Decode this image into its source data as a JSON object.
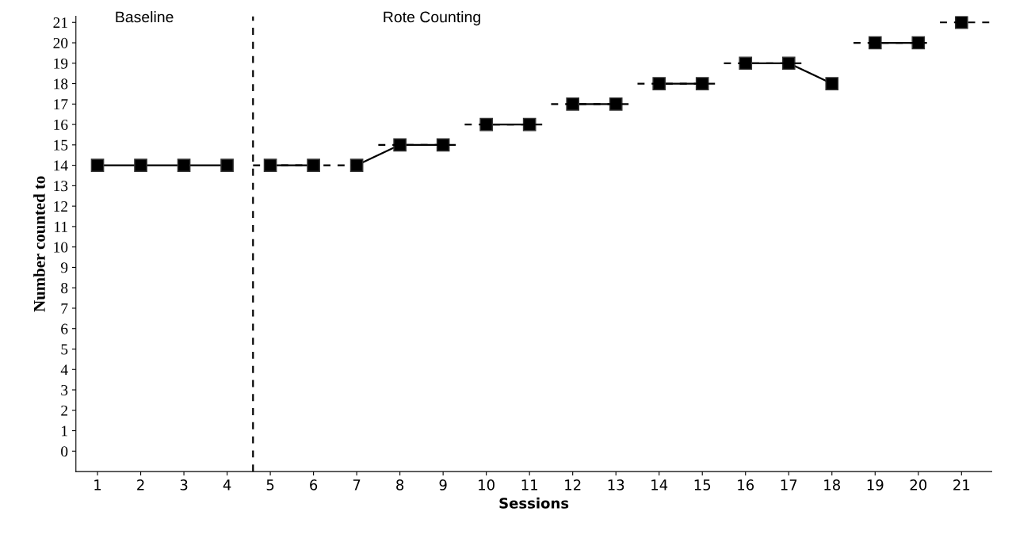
{
  "chart_data": {
    "type": "line",
    "xlabel": "Sessions",
    "ylabel": "Number counted to",
    "xlim": [
      0.5,
      21.7
    ],
    "xticks": [
      1,
      2,
      3,
      4,
      5,
      6,
      7,
      8,
      9,
      10,
      11,
      12,
      13,
      14,
      15,
      16,
      17,
      18,
      19,
      20,
      21
    ],
    "ylim": [
      -1,
      21.3
    ],
    "yticks": [
      0,
      1,
      2,
      3,
      4,
      5,
      6,
      7,
      8,
      9,
      10,
      11,
      12,
      13,
      14,
      15,
      16,
      17,
      18,
      19,
      20,
      21
    ],
    "grid": false,
    "legend": false,
    "marker": "square",
    "line_style": "solid",
    "series": [
      {
        "color": "#000000",
        "x": [
          1,
          2,
          3,
          4
        ],
        "values": [
          14,
          14,
          14,
          14
        ]
      },
      {
        "color": "#000000",
        "x": [
          5,
          6
        ],
        "values": [
          14,
          14
        ]
      },
      {
        "color": "#000000",
        "x": [
          7,
          8,
          9
        ],
        "values": [
          14,
          15,
          15
        ]
      },
      {
        "color": "#000000",
        "x": [
          10,
          11
        ],
        "values": [
          16,
          16
        ]
      },
      {
        "color": "#000000",
        "x": [
          12,
          13
        ],
        "values": [
          17,
          17
        ]
      },
      {
        "color": "#000000",
        "x": [
          14,
          15
        ],
        "values": [
          18,
          18
        ]
      },
      {
        "color": "#000000",
        "x": [
          16,
          17,
          18
        ],
        "values": [
          19,
          19,
          18
        ]
      },
      {
        "color": "#000000",
        "x": [
          19,
          20
        ],
        "values": [
          20,
          20
        ]
      },
      {
        "color": "#000000",
        "x": [
          21
        ],
        "values": [
          21
        ]
      },
      {
        "color": "#000000",
        "marker": "none",
        "line_style": "dashed",
        "x": [
          4.6,
          7.2
        ],
        "values": [
          14,
          14
        ]
      },
      {
        "color": "#000000",
        "marker": "none",
        "line_style": "dashed",
        "x": [
          7.5,
          9.3
        ],
        "values": [
          15,
          15
        ]
      },
      {
        "color": "#000000",
        "marker": "none",
        "line_style": "dashed",
        "x": [
          9.5,
          11.3
        ],
        "values": [
          16,
          16
        ]
      },
      {
        "color": "#000000",
        "marker": "none",
        "line_style": "dashed",
        "x": [
          11.5,
          13.3
        ],
        "values": [
          17,
          17
        ]
      },
      {
        "color": "#000000",
        "marker": "none",
        "line_style": "dashed",
        "x": [
          13.5,
          15.3
        ],
        "values": [
          18,
          18
        ]
      },
      {
        "color": "#000000",
        "marker": "none",
        "line_style": "dashed",
        "x": [
          15.5,
          17.3
        ],
        "values": [
          19,
          19
        ]
      },
      {
        "color": "#000000",
        "marker": "none",
        "line_style": "dashed",
        "x": [
          18.5,
          20.2
        ],
        "values": [
          20,
          20
        ]
      },
      {
        "color": "#000000",
        "marker": "none",
        "line_style": "dashed",
        "x": [
          20.5,
          21.7
        ],
        "values": [
          21,
          21
        ]
      }
    ],
    "ref_lines": [
      {
        "axis": "x",
        "value": 4.6,
        "color": "#000000",
        "line_style": "dashed"
      }
    ],
    "annotations": [
      "Baseline",
      "Rote Counting"
    ]
  }
}
